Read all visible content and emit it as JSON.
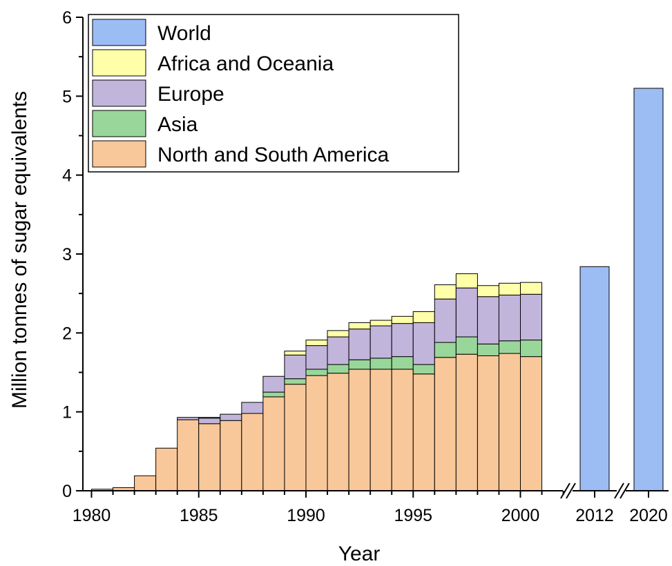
{
  "chart_data": {
    "type": "bar",
    "stacked": true,
    "xlabel": "Year",
    "ylabel": "Million tonnes of sugar equivalents",
    "ylim": [
      0,
      6
    ],
    "y_ticks": [
      "0",
      "1",
      "2",
      "3",
      "4",
      "5",
      "6"
    ],
    "x_ticks": [
      "1980",
      "1985",
      "1990",
      "1995",
      "2000",
      "2012",
      "2020"
    ],
    "axis_breaks": [
      "between 2002 and 2012",
      "between 2012 and 2020"
    ],
    "legend_position": "top-left",
    "grid": false,
    "categories": [
      "1980",
      "1981",
      "1982",
      "1983",
      "1984",
      "1985",
      "1986",
      "1987",
      "1988",
      "1989",
      "1990",
      "1991",
      "1992",
      "1993",
      "1994",
      "1995",
      "1996",
      "1997",
      "1998",
      "1999",
      "2000",
      "2001"
    ],
    "series": [
      {
        "name": "North and South America",
        "color": "#f9c89a",
        "values": [
          0.02,
          0.04,
          0.19,
          0.54,
          0.9,
          0.85,
          0.89,
          0.98,
          1.19,
          1.35,
          1.46,
          1.49,
          1.54,
          1.54,
          1.54,
          1.48,
          1.69,
          1.73,
          1.71,
          1.74,
          1.7,
          0
        ]
      },
      {
        "name": "Asia",
        "color": "#99d69a",
        "values": [
          0,
          0,
          0,
          0,
          0,
          0,
          0,
          0,
          0.06,
          0.07,
          0.08,
          0.11,
          0.12,
          0.14,
          0.16,
          0.12,
          0.19,
          0.22,
          0.15,
          0.16,
          0.21,
          0
        ]
      },
      {
        "name": "Europe",
        "color": "#c2b5dc",
        "values": [
          0,
          0,
          0,
          0,
          0.03,
          0.07,
          0.08,
          0.14,
          0.2,
          0.3,
          0.3,
          0.35,
          0.39,
          0.41,
          0.42,
          0.53,
          0.55,
          0.62,
          0.6,
          0.58,
          0.58,
          0
        ]
      },
      {
        "name": "Africa and Oceania",
        "color": "#feffa8",
        "values": [
          0,
          0,
          0,
          0,
          0,
          0.01,
          0,
          0,
          0,
          0.05,
          0.07,
          0.08,
          0.08,
          0.07,
          0.09,
          0.14,
          0.18,
          0.18,
          0.14,
          0.15,
          0.15,
          0
        ]
      }
    ],
    "world": {
      "name": "World",
      "color": "#9cbcf4",
      "categories": [
        "2012",
        "2020"
      ],
      "values": [
        2.84,
        5.1
      ]
    },
    "legend_order": [
      "World",
      "Africa and Oceania",
      "Europe",
      "Asia",
      "North and South America"
    ]
  }
}
